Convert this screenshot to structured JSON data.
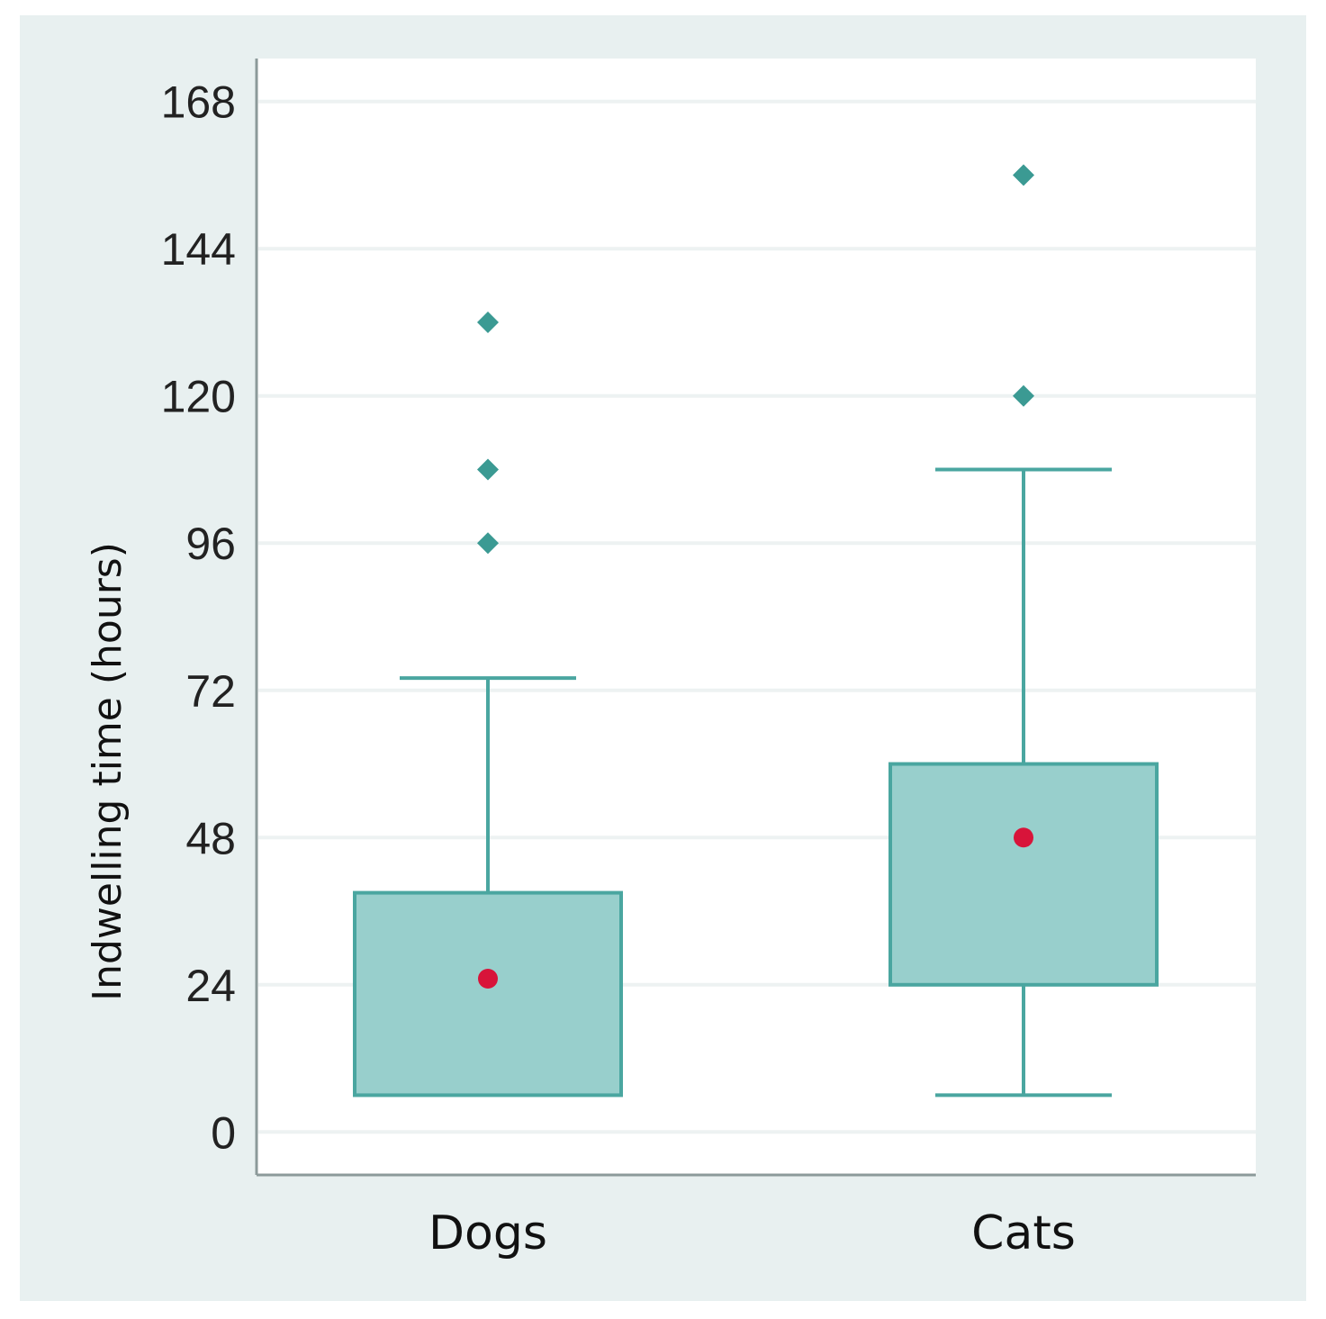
{
  "chart_data": {
    "type": "box",
    "title": "",
    "xlabel": "",
    "ylabel": "Indwelling time (hours)",
    "yticks": [
      "0",
      "24",
      "48",
      "72",
      "96",
      "120",
      "144",
      "168"
    ],
    "ylim": [
      -7,
      175
    ],
    "grid": true,
    "categories": [
      "Dogs",
      "Cats"
    ],
    "series": [
      {
        "name": "Dogs",
        "whisker_low": 6,
        "q1": 6,
        "q3": 39,
        "whisker_high": 74,
        "median": 25,
        "outliers": [
          96,
          108,
          132
        ]
      },
      {
        "name": "Cats",
        "whisker_low": 6,
        "q1": 24,
        "q3": 60,
        "whisker_high": 108,
        "median": 48,
        "outliers": [
          120,
          156
        ]
      }
    ],
    "colors": {
      "box_fill": "#98cfcc",
      "box_stroke": "#4aa6a0",
      "outlier": "#3b9a93",
      "median_marker": "#d8143a",
      "grid": "#edf2f2",
      "frame_bg": "#e8f0f0",
      "plot_bg": "#ffffff",
      "axis": "#8c9a9a"
    }
  }
}
